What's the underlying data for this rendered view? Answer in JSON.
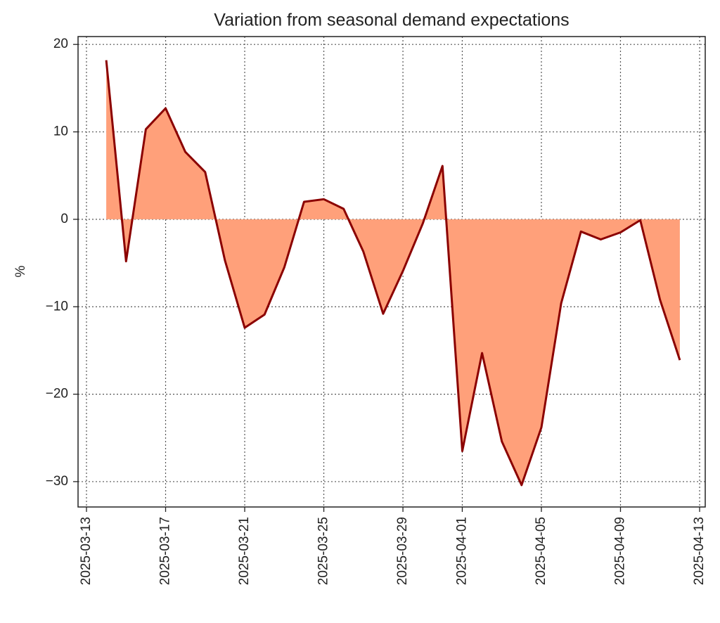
{
  "chart_data": {
    "type": "area",
    "title": "Variation from seasonal demand expectations",
    "y_label": "%",
    "x": [
      "2025-03-14",
      "2025-03-15",
      "2025-03-16",
      "2025-03-17",
      "2025-03-18",
      "2025-03-19",
      "2025-03-20",
      "2025-03-21",
      "2025-03-22",
      "2025-03-23",
      "2025-03-24",
      "2025-03-25",
      "2025-03-26",
      "2025-03-27",
      "2025-03-28",
      "2025-03-29",
      "2025-03-30",
      "2025-03-31",
      "2025-04-01",
      "2025-04-02",
      "2025-04-03",
      "2025-04-04",
      "2025-04-05",
      "2025-04-06",
      "2025-04-07",
      "2025-04-08",
      "2025-04-09",
      "2025-04-10",
      "2025-04-11",
      "2025-04-12"
    ],
    "values": [
      18.2,
      -4.8,
      10.3,
      12.7,
      7.7,
      5.4,
      -4.7,
      -12.4,
      -10.9,
      -5.5,
      2.0,
      2.3,
      1.2,
      -3.7,
      -10.8,
      -5.9,
      -0.5,
      6.1,
      -26.5,
      -15.3,
      -25.4,
      -30.4,
      -23.8,
      -9.6,
      -1.4,
      -2.3,
      -1.5,
      -0.1,
      -9.2,
      -16.1
    ],
    "color": "#8b0000",
    "fill_color": "#ffa07a",
    "xlim": [
      "2025-03-13",
      "2025-04-13"
    ],
    "xticks": [
      "2025-03-13",
      "2025-03-17",
      "2025-03-21",
      "2025-03-25",
      "2025-03-29",
      "2025-04-01",
      "2025-04-05",
      "2025-04-09",
      "2025-04-13"
    ],
    "ylim": [
      -32.9,
      20.9
    ],
    "yticks": [
      {
        "value": -30,
        "label": "−30"
      },
      {
        "value": -20,
        "label": "−20"
      },
      {
        "value": -10,
        "label": "−10"
      },
      0,
      10,
      20
    ],
    "grid": true
  }
}
